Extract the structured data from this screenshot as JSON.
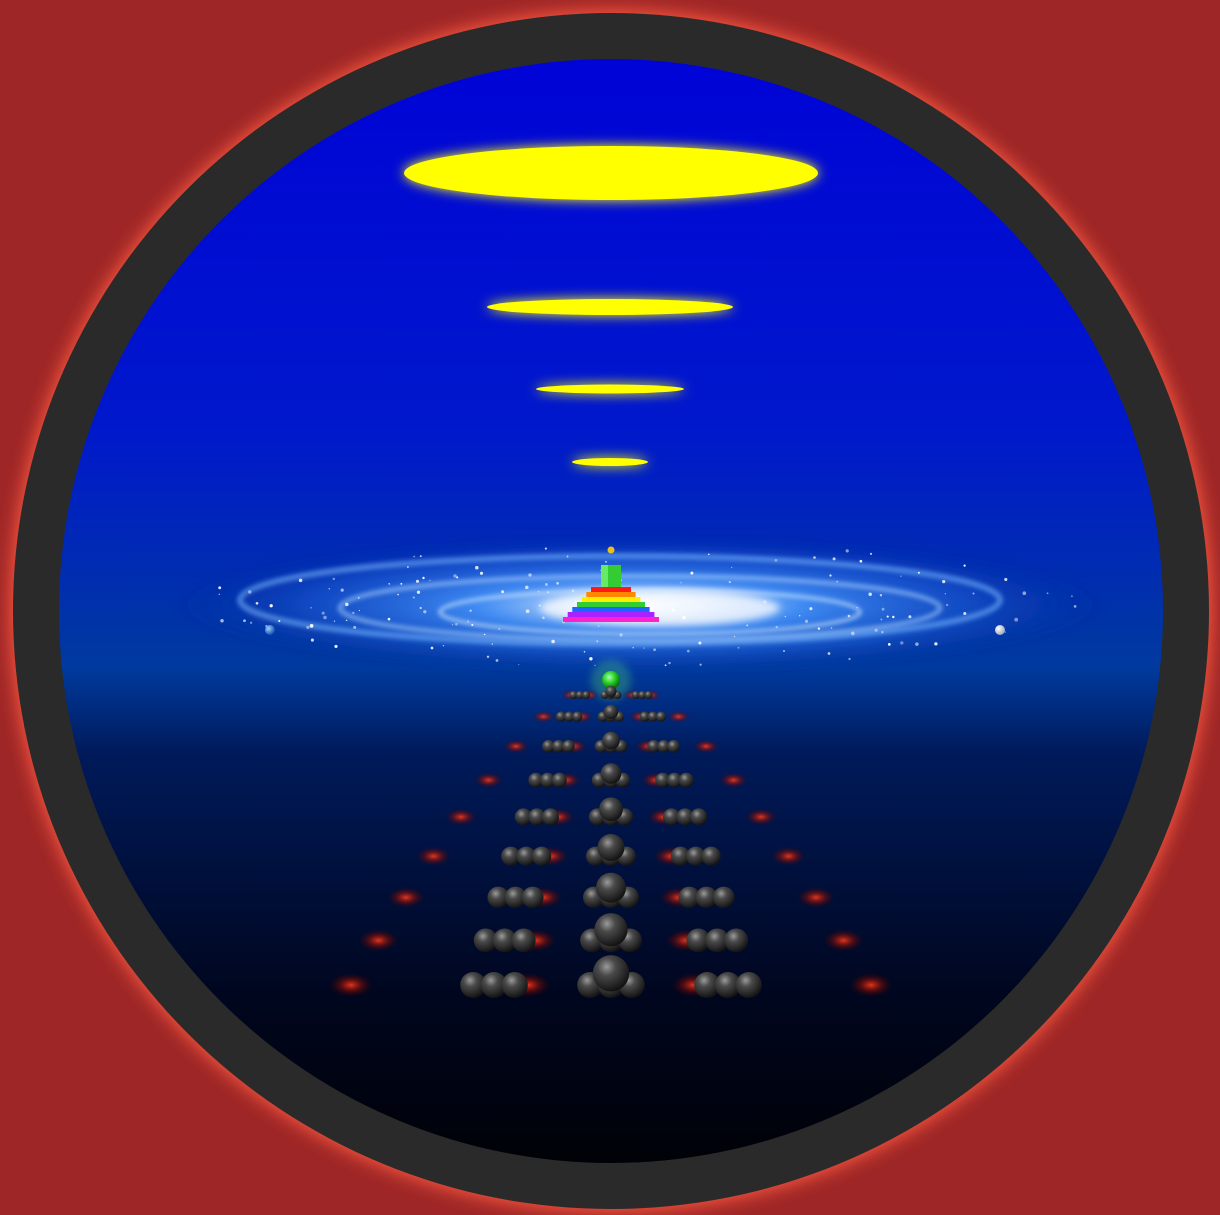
{
  "colors": {
    "background": "#9e2626",
    "ring": "#2a2a2a",
    "ring_glow": "#ff4a3a",
    "sky_top": "#0000d6",
    "sky_mid": "#0030c8",
    "sky_bottom": "#000000",
    "disc": "#ffff00",
    "disc_glow": "#ffff88",
    "galaxy": "#2f7fff",
    "galaxy_core": "#ffffff",
    "sphere": "#3a3a3a",
    "sphere_glow": "#ff2a1a",
    "green_orb": "#22dd22",
    "rainbow": [
      "#ff1a1a",
      "#ff8800",
      "#ffee00",
      "#33cc33",
      "#1a66ff",
      "#aa22ff",
      "#ff22cc"
    ]
  },
  "scene": {
    "discs": 4,
    "pyramid_steps": 7,
    "sphere_rows": 9,
    "planets": [
      "blue-planet",
      "white-moon"
    ]
  }
}
